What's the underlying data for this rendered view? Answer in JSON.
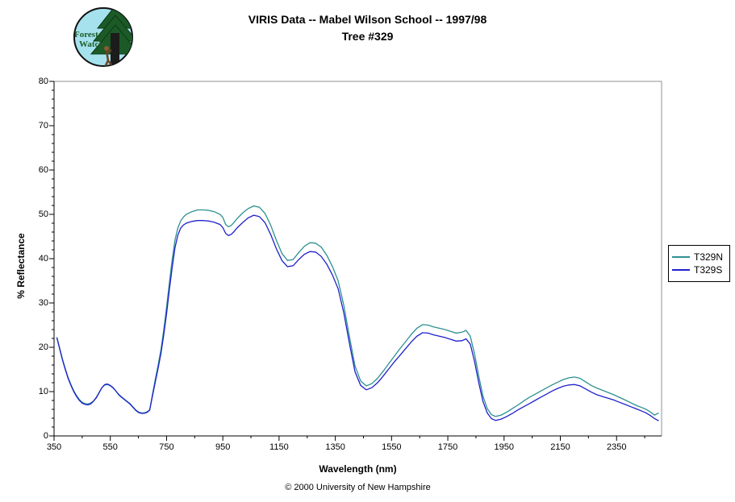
{
  "header": {
    "title_line1": "VIRIS Data -- Mabel Wilson School -- 1997/98",
    "title_line2": "Tree #329"
  },
  "logo": {
    "line1": "Forest",
    "line2": "Watch"
  },
  "footer": {
    "copyright": "© 2000 University of New Hampshire"
  },
  "colors": {
    "series_n": "#2e9090",
    "series_s": "#2020cc",
    "plot_border": "#909090",
    "axis": "#000000",
    "logo_sky": "#a5e2ee",
    "logo_tree": "#1c5a28"
  },
  "chart_data": {
    "type": "line",
    "title": "VIRIS Data -- Mabel Wilson School -- 1997/98 | Tree #329",
    "xlabel": "Wavelength (nm)",
    "ylabel": "% Reflectance",
    "xlim": [
      350,
      2510
    ],
    "ylim": [
      0,
      80
    ],
    "grid": false,
    "legend_position": "right-outside",
    "x_ticks": {
      "major": [
        350,
        550,
        750,
        950,
        1150,
        1350,
        1550,
        1750,
        1950,
        2150,
        2350
      ],
      "minor": [
        450,
        650,
        850,
        1050,
        1250,
        1450,
        1650,
        1850,
        2050,
        2250,
        2450
      ]
    },
    "y_ticks": {
      "major": [
        0,
        10,
        20,
        30,
        40,
        50,
        60,
        70,
        80
      ],
      "minor": [
        2,
        4,
        6,
        8,
        12,
        14,
        16,
        18,
        22,
        24,
        26,
        28,
        32,
        34,
        36,
        38,
        42,
        44,
        46,
        48,
        52,
        54,
        56,
        58,
        62,
        64,
        66,
        68,
        72,
        74,
        76,
        78
      ]
    },
    "x": [
      360,
      370,
      380,
      390,
      400,
      410,
      420,
      430,
      440,
      450,
      460,
      470,
      480,
      490,
      500,
      510,
      520,
      530,
      540,
      550,
      560,
      570,
      580,
      590,
      600,
      610,
      620,
      630,
      640,
      650,
      660,
      670,
      680,
      690,
      700,
      710,
      720,
      730,
      740,
      750,
      760,
      770,
      780,
      790,
      800,
      810,
      820,
      840,
      860,
      880,
      900,
      920,
      940,
      950,
      960,
      970,
      980,
      990,
      1000,
      1020,
      1040,
      1060,
      1080,
      1100,
      1120,
      1140,
      1160,
      1180,
      1200,
      1220,
      1240,
      1260,
      1280,
      1300,
      1320,
      1340,
      1360,
      1380,
      1400,
      1420,
      1440,
      1460,
      1480,
      1500,
      1520,
      1540,
      1560,
      1580,
      1600,
      1620,
      1640,
      1660,
      1680,
      1700,
      1720,
      1740,
      1760,
      1780,
      1800,
      1815,
      1830,
      1845,
      1860,
      1875,
      1890,
      1905,
      1920,
      1940,
      1960,
      1980,
      2000,
      2020,
      2040,
      2060,
      2080,
      2100,
      2120,
      2140,
      2160,
      2180,
      2200,
      2220,
      2240,
      2260,
      2280,
      2300,
      2320,
      2340,
      2360,
      2380,
      2400,
      2420,
      2440,
      2455,
      2470,
      2485,
      2500
    ],
    "series": [
      {
        "name": "T329N",
        "color": "#2e9090",
        "values": [
          22.3,
          19.8,
          17.3,
          15.2,
          13.2,
          11.6,
          10.2,
          9.1,
          8.2,
          7.6,
          7.3,
          7.2,
          7.4,
          7.9,
          8.7,
          9.8,
          10.9,
          11.5,
          11.6,
          11.3,
          10.8,
          10.1,
          9.4,
          8.8,
          8.3,
          7.8,
          7.3,
          6.6,
          5.9,
          5.4,
          5.2,
          5.2,
          5.4,
          5.9,
          9.4,
          12.8,
          16.0,
          19.5,
          24.0,
          29.0,
          34.5,
          39.8,
          44.2,
          46.9,
          48.5,
          49.4,
          50.0,
          50.6,
          51.0,
          51.0,
          50.9,
          50.6,
          50.0,
          49.3,
          47.7,
          47.2,
          47.5,
          48.2,
          49.0,
          50.3,
          51.3,
          51.9,
          51.6,
          50.2,
          47.6,
          44.2,
          41.2,
          39.6,
          39.8,
          41.4,
          42.8,
          43.6,
          43.5,
          42.6,
          40.7,
          38.2,
          35.0,
          29.5,
          22.5,
          15.8,
          12.4,
          11.3,
          11.8,
          13.0,
          14.6,
          16.3,
          18.0,
          19.7,
          21.3,
          22.9,
          24.3,
          25.1,
          25.0,
          24.6,
          24.3,
          24.0,
          23.6,
          23.2,
          23.4,
          23.8,
          22.5,
          18.5,
          13.5,
          9.0,
          6.2,
          4.8,
          4.4,
          4.7,
          5.4,
          6.2,
          7.0,
          7.9,
          8.7,
          9.4,
          10.1,
          10.8,
          11.5,
          12.1,
          12.7,
          13.1,
          13.3,
          13.0,
          12.2,
          11.4,
          10.8,
          10.3,
          9.8,
          9.3,
          8.7,
          8.1,
          7.5,
          6.9,
          6.4,
          6.0,
          5.4,
          4.7,
          5.2
        ]
      },
      {
        "name": "T329S",
        "color": "#2020cc",
        "values": [
          22.1,
          19.6,
          17.1,
          15.0,
          13.0,
          11.4,
          10.0,
          8.9,
          8.0,
          7.4,
          7.1,
          7.0,
          7.2,
          7.8,
          8.6,
          9.7,
          10.9,
          11.6,
          11.7,
          11.4,
          10.9,
          10.1,
          9.3,
          8.7,
          8.2,
          7.7,
          7.2,
          6.5,
          5.8,
          5.3,
          5.1,
          5.1,
          5.3,
          5.8,
          9.0,
          12.2,
          15.3,
          18.6,
          22.9,
          27.5,
          33.0,
          38.0,
          42.5,
          45.3,
          46.9,
          47.6,
          48.0,
          48.4,
          48.6,
          48.6,
          48.5,
          48.2,
          47.7,
          47.0,
          45.7,
          45.2,
          45.5,
          46.1,
          46.9,
          48.1,
          49.2,
          49.8,
          49.5,
          48.1,
          45.5,
          42.3,
          39.6,
          38.2,
          38.4,
          39.8,
          41.0,
          41.6,
          41.5,
          40.5,
          38.7,
          36.3,
          33.2,
          27.8,
          21.0,
          14.5,
          11.4,
          10.4,
          10.9,
          12.0,
          13.5,
          15.1,
          16.7,
          18.2,
          19.7,
          21.2,
          22.5,
          23.3,
          23.2,
          22.8,
          22.5,
          22.2,
          21.8,
          21.4,
          21.5,
          21.9,
          20.7,
          16.8,
          12.0,
          7.8,
          5.2,
          3.9,
          3.5,
          3.8,
          4.4,
          5.1,
          5.9,
          6.6,
          7.3,
          8.0,
          8.7,
          9.4,
          10.1,
          10.7,
          11.2,
          11.5,
          11.6,
          11.3,
          10.6,
          9.9,
          9.3,
          8.9,
          8.5,
          8.1,
          7.6,
          7.1,
          6.6,
          6.1,
          5.6,
          5.2,
          4.6,
          3.9,
          3.4
        ]
      }
    ]
  }
}
